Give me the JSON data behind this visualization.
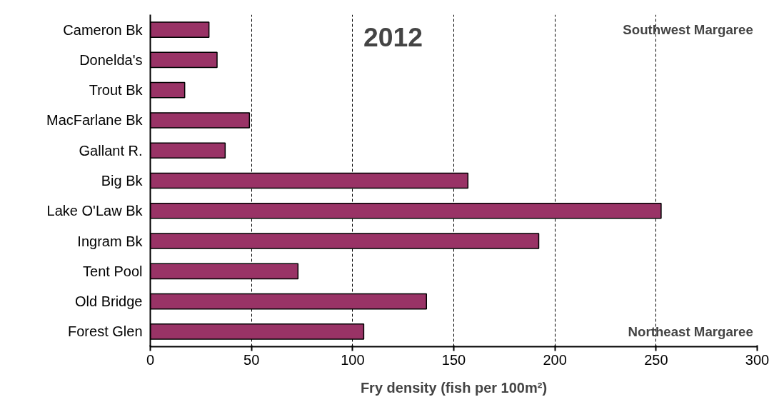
{
  "chart_data": {
    "type": "bar",
    "orientation": "horizontal",
    "xlabel": "Fry density (fish per 100m²)",
    "categories": [
      "Cameron Bk",
      "Donelda's",
      "Trout Bk",
      "MacFarlane Bk",
      "Gallant R.",
      "Big Bk",
      "Lake O'Law Bk",
      "Ingram Bk",
      "Tent Pool",
      "Old Bridge",
      "Forest Glen"
    ],
    "values": [
      29,
      33,
      17,
      49,
      37,
      157,
      252.5,
      192,
      73,
      136.5,
      105.5
    ],
    "color": "#993366",
    "xlim": [
      0,
      300
    ],
    "xticks": [
      0,
      50,
      100,
      150,
      200,
      250,
      300
    ],
    "grid": "x",
    "annotations": [
      "2012",
      "Southwest Margaree",
      "Northeast Margaree"
    ]
  }
}
